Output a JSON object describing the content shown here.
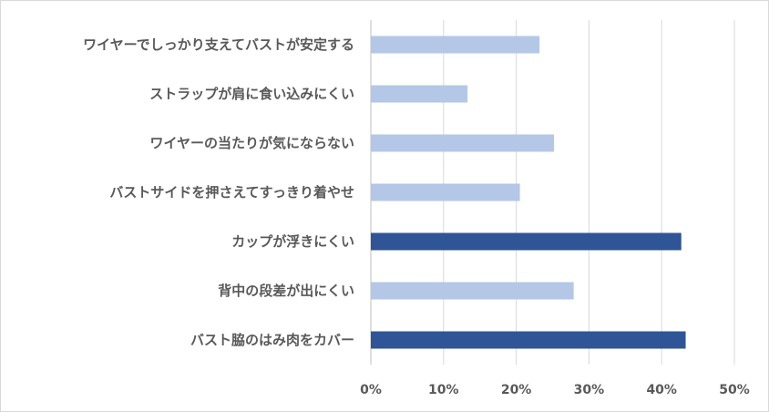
{
  "colors": {
    "light_bar": "#b4c7e7",
    "dark_bar": "#2f5597",
    "gridline": "#d9d9d9",
    "axis": "#bfbfbf",
    "text": "#595959",
    "frame": "#d9d9d9"
  },
  "chart_data": {
    "type": "bar",
    "orientation": "horizontal",
    "title": "",
    "xlabel": "",
    "ylabel": "",
    "xlim": [
      0,
      50
    ],
    "x_ticks": [
      "0%",
      "10%",
      "20%",
      "30%",
      "40%",
      "50%"
    ],
    "grid": true,
    "legend": "none",
    "categories": [
      "ワイヤーでしっかり支えてバストが安定する",
      "ストラップが肩に食い込みにくい",
      "ワイヤーの当たりが気にならない",
      "バストサイドを押さえてすっきり着やせ",
      "カップが浮きにくい",
      "背中の段差が出にくい",
      "バスト脇のはみ肉をカバー"
    ],
    "values": [
      23.2,
      13.3,
      25.2,
      20.5,
      42.7,
      27.9,
      43.3
    ],
    "highlight": [
      false,
      false,
      false,
      false,
      true,
      false,
      true
    ]
  }
}
